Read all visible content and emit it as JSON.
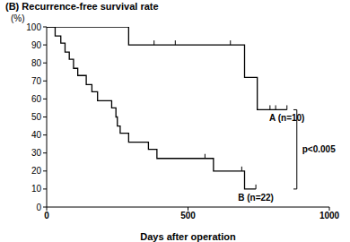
{
  "chart_data": {
    "type": "line",
    "title": "(B) Recurrence-free survival rate",
    "y_label": "(%)",
    "x_label": "Days after operation",
    "xlim": [
      0,
      1000
    ],
    "xticks": [
      0,
      500,
      1000
    ],
    "ylim": [
      0,
      100
    ],
    "yticks": [
      0,
      10,
      20,
      30,
      40,
      50,
      60,
      70,
      80,
      90,
      100
    ],
    "line_style": "step",
    "annotation": "p<0.005",
    "series": [
      {
        "name": "A (n=10)",
        "color": "#000000",
        "x": [
          0,
          290,
          700,
          745,
          850
        ],
        "values": [
          100,
          90,
          72,
          54,
          54
        ],
        "censored": [
          380,
          455,
          650,
          790,
          810,
          850
        ]
      },
      {
        "name": "B (n=22)",
        "color": "#000000",
        "x": [
          0,
          30,
          50,
          65,
          80,
          95,
          110,
          140,
          160,
          180,
          230,
          245,
          250,
          260,
          290,
          360,
          390,
          590,
          700,
          740
        ],
        "values": [
          100,
          95,
          91,
          86,
          82,
          77,
          73,
          68,
          64,
          59,
          55,
          50,
          45,
          41,
          36,
          32,
          27,
          20,
          10,
          10
        ],
        "censored": [
          560,
          690,
          740
        ]
      }
    ]
  }
}
